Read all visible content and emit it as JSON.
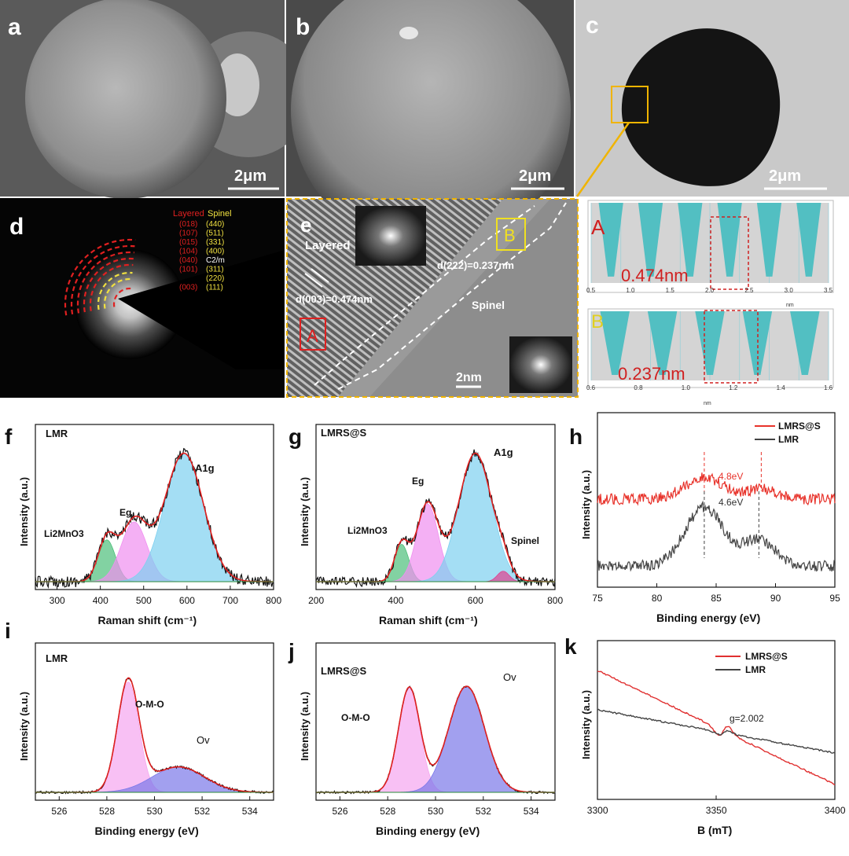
{
  "panels": {
    "a": {
      "letter": "a",
      "scale": "2μm"
    },
    "b": {
      "letter": "b",
      "scale": "2μm"
    },
    "c": {
      "letter": "c",
      "scale": "2μm"
    },
    "d": {
      "letter": "d",
      "legend_layered": "Layered",
      "legend_spinel": "Spinel",
      "rings": [
        {
          "layered": "(018)",
          "spinel": "(440)"
        },
        {
          "layered": "(107)",
          "spinel": "(511)"
        },
        {
          "layered": "(015)",
          "spinel": "(331)"
        },
        {
          "layered": "(104)",
          "spinel": "(400)"
        },
        {
          "layered": "(040)",
          "spinel": "C2/m"
        },
        {
          "layered": "(101)",
          "spinel": "(311)"
        },
        {
          "layered": "",
          "spinel": "(220)"
        },
        {
          "layered": "(003)",
          "spinel": "(111)"
        }
      ]
    },
    "e": {
      "letter": "e",
      "label_layered": "Layered",
      "label_spinel": "Spinel",
      "d003": "d(003)=0.474nm",
      "d222": "d(222)=0.237nm",
      "box_a": "A",
      "box_b": "B",
      "scale": "2nm"
    },
    "profile_a": {
      "letter": "A",
      "value": "0.474nm",
      "ticks": [
        "0.5",
        "1.0",
        "1.5",
        "2.0",
        "2.5",
        "3.0",
        "3.5"
      ],
      "unit": "nm"
    },
    "profile_b": {
      "letter": "B",
      "value": "0.237nm",
      "ticks": [
        "0.6",
        "0.8",
        "1.0",
        "1.2",
        "1.4",
        "1.6"
      ],
      "unit": "nm"
    },
    "f": {
      "letter": "f",
      "sample": "LMR",
      "peaks": [
        "Li2MnO3",
        "Eg",
        "A1g"
      ]
    },
    "g": {
      "letter": "g",
      "sample": "LMRS@S",
      "peaks": [
        "Li2MnO3",
        "Eg",
        "A1g",
        "Spinel"
      ]
    },
    "h": {
      "letter": "h",
      "splitting_red": "4.8eV",
      "splitting_black": "4.6eV"
    },
    "i": {
      "letter": "i",
      "sample": "LMR",
      "peaks": [
        "O-M-O",
        "Ov"
      ]
    },
    "j": {
      "letter": "j",
      "sample": "LMRS@S",
      "peaks": [
        "O-M-O",
        "Ov"
      ]
    },
    "k": {
      "letter": "k",
      "annotation": "g=2.002"
    }
  },
  "chart_data": [
    {
      "id": "f",
      "type": "line",
      "title": "LMR",
      "xlabel": "Raman shift (cm-1)",
      "ylabel": "Intensity (a.u.)",
      "xlim": [
        250,
        800
      ],
      "xticks": [
        300,
        400,
        500,
        600,
        700,
        800
      ],
      "peaks": [
        {
          "name": "Li2MnO3",
          "x": 415,
          "height": 0.28,
          "width": 20,
          "color": "#4dbf7a"
        },
        {
          "name": "Eg",
          "x": 478,
          "height": 0.4,
          "width": 30,
          "color": "#f08ff0"
        },
        {
          "name": "A1g",
          "x": 593,
          "height": 0.86,
          "width": 45,
          "color": "#7dd0f0"
        }
      ]
    },
    {
      "id": "g",
      "type": "line",
      "title": "LMRS@S",
      "xlabel": "Raman shift (cm-1)",
      "ylabel": "Intensity (a.u.)",
      "xlim": [
        200,
        800
      ],
      "xticks": [
        200,
        400,
        600,
        800
      ],
      "peaks": [
        {
          "name": "Li2MnO3",
          "x": 415,
          "height": 0.25,
          "width": 18,
          "color": "#4dbf7a"
        },
        {
          "name": "Eg",
          "x": 480,
          "height": 0.52,
          "width": 27,
          "color": "#f08ff0"
        },
        {
          "name": "A1g",
          "x": 600,
          "height": 0.86,
          "width": 42,
          "color": "#7dd0f0"
        },
        {
          "name": "Spinel",
          "x": 670,
          "height": 0.07,
          "width": 15,
          "color": "#e0408f"
        }
      ]
    },
    {
      "id": "h",
      "type": "line",
      "xlabel": "Binding energy (eV)",
      "ylabel": "Intensity (a.u.)",
      "xlim": [
        75,
        95
      ],
      "xticks": [
        75,
        80,
        85,
        90,
        95
      ],
      "series": [
        {
          "name": "LMRS@S",
          "color": "#e8332b",
          "peaks": [
            84.0,
            88.8
          ]
        },
        {
          "name": "LMR",
          "color": "#444444",
          "peaks": [
            84.0,
            88.6
          ]
        }
      ]
    },
    {
      "id": "i",
      "type": "line",
      "title": "LMR",
      "xlabel": "Binding energy (eV)",
      "ylabel": "Intensity (a.u.)",
      "xlim": [
        525,
        535
      ],
      "xticks": [
        526,
        528,
        530,
        532,
        534
      ],
      "peaks": [
        {
          "name": "O-M-O",
          "x": 528.9,
          "height": 0.78,
          "width": 0.45,
          "color": "#f5a5ef"
        },
        {
          "name": "Ov",
          "x": 531.0,
          "height": 0.18,
          "width": 1.1,
          "color": "#7a78e8"
        }
      ]
    },
    {
      "id": "j",
      "type": "line",
      "title": "LMRS@S",
      "xlabel": "Binding energy (eV)",
      "ylabel": "Intensity (a.u.)",
      "xlim": [
        525,
        535
      ],
      "xticks": [
        526,
        528,
        530,
        532,
        534
      ],
      "peaks": [
        {
          "name": "O-M-O",
          "x": 528.9,
          "height": 0.74,
          "width": 0.45,
          "color": "#f5a5ef"
        },
        {
          "name": "Ov",
          "x": 531.3,
          "height": 0.75,
          "width": 0.75,
          "color": "#7a78e8"
        }
      ]
    },
    {
      "id": "k",
      "type": "line",
      "xlabel": "B (mT)",
      "ylabel": "Intensity (a.u.)",
      "xlim": [
        3300,
        3400
      ],
      "xticks": [
        3300,
        3350,
        3400
      ],
      "series": [
        {
          "name": "LMRS@S",
          "color": "#e03030"
        },
        {
          "name": "LMR",
          "color": "#444444"
        }
      ]
    }
  ]
}
